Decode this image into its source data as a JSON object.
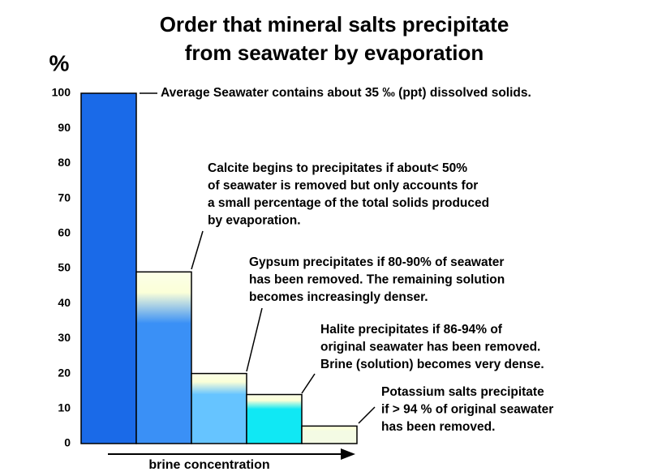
{
  "chart_data": {
    "type": "bar",
    "title": [
      "Order that mineral salts precipitate",
      "from seawater by evaporation"
    ],
    "y_label": "%",
    "x_label": "brine concentration",
    "categories": [
      null,
      null,
      null,
      null,
      null
    ],
    "values": [
      100,
      49,
      20,
      14,
      5
    ],
    "colors": [
      "#1a6ae8",
      "#3a90f6",
      "#66c4ff",
      "#10e8f4",
      "#f4fbe4"
    ],
    "ylim": [
      0,
      100
    ],
    "yticks": [
      0,
      10,
      20,
      30,
      40,
      50,
      60,
      70,
      80,
      90,
      100
    ],
    "grid": false,
    "annotations": [
      [
        "Average Seawater contains about 35 ‰ (ppt) dissolved solids."
      ],
      [
        "Calcite begins to precipitates if about< 50%",
        "of seawater is removed but only accounts for",
        "a small percentage of the total solids produced",
        "by evaporation."
      ],
      [
        "Gypsum precipitates if 80-90% of seawater",
        "has been removed. The remaining solution",
        "becomes increasingly denser."
      ],
      [
        "Halite precipitates if 86-94% of",
        "original seawater has been removed.",
        "Brine (solution) becomes very dense."
      ],
      [
        "Potassium salts precipitate",
        "if > 94 % of original seawater",
        "has been removed."
      ]
    ]
  }
}
